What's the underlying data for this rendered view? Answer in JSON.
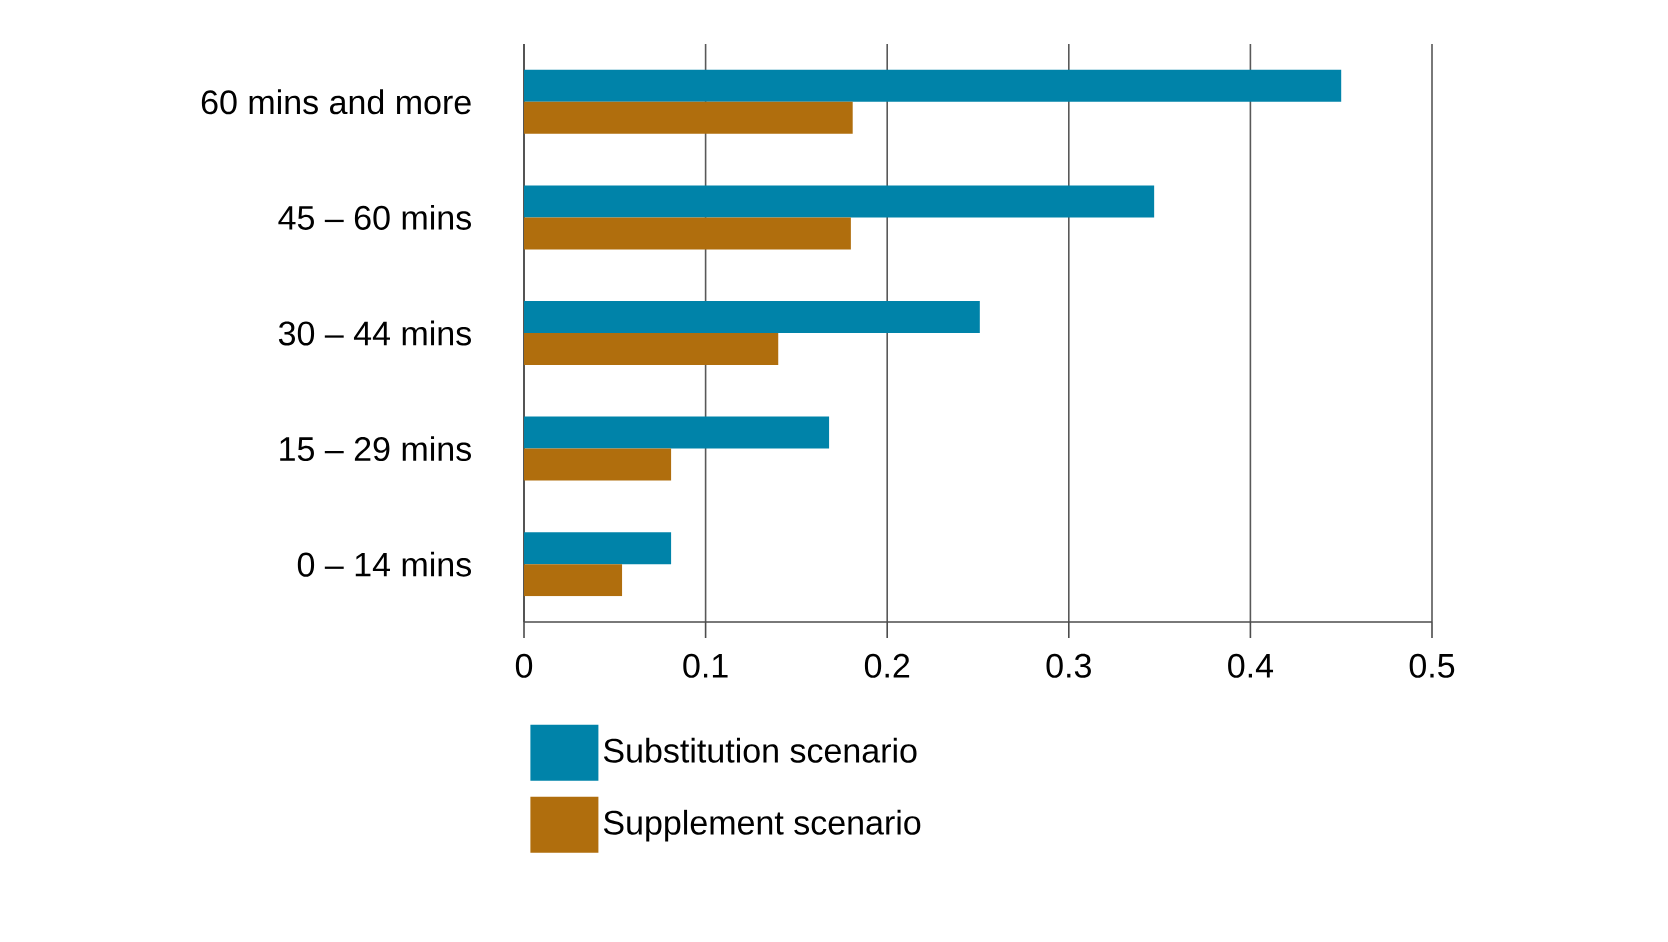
{
  "chart_data": {
    "type": "bar",
    "orientation": "horizontal",
    "categories": [
      "60 mins and more",
      "45 – 60 mins",
      "30 – 44 mins",
      "15 – 29 mins",
      "0 – 14 mins"
    ],
    "series": [
      {
        "name": "Substitution scenario",
        "color": "#0083a9",
        "values": [
          0.45,
          0.347,
          0.251,
          0.168,
          0.081
        ]
      },
      {
        "name": "Supplement scenario",
        "color": "#b06e0d",
        "values": [
          0.181,
          0.18,
          0.14,
          0.081,
          0.054
        ]
      }
    ],
    "xlim": [
      0,
      0.5
    ],
    "xticks": [
      0,
      0.1,
      0.2,
      0.3,
      0.4,
      0.5
    ],
    "grid": "x",
    "legend": "bottom"
  }
}
